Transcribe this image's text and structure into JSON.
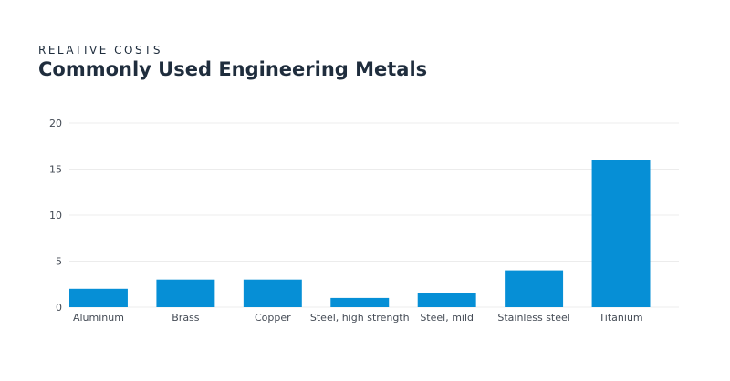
{
  "header": {
    "subtitle": "RELATIVE COSTS",
    "title": "Commonly Used Engineering Metals"
  },
  "chart_data": {
    "type": "bar",
    "title": "Commonly Used Engineering Metals",
    "subtitle": "RELATIVE COSTS",
    "categories": [
      "Aluminum",
      "Brass",
      "Copper",
      "Steel, high strength",
      "Steel, mild",
      "Stainless steel",
      "Titanium"
    ],
    "values": [
      2,
      3,
      3,
      1,
      1.5,
      4,
      16
    ],
    "ylim": [
      0,
      20
    ],
    "yticks": [
      0,
      5,
      10,
      15,
      20
    ],
    "grid": true,
    "bar_color": "#068fd6"
  }
}
